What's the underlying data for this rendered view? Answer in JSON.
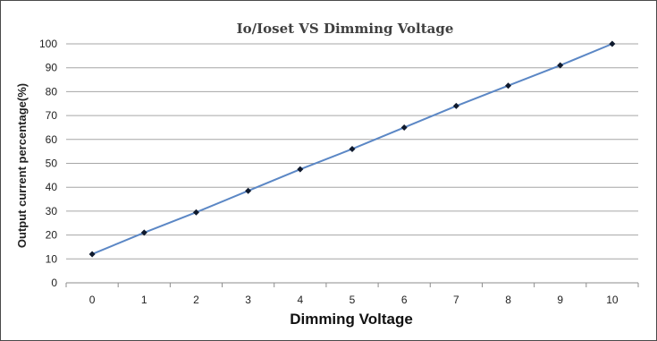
{
  "chart_data": {
    "type": "line",
    "title": "Io/Ioset VS Dimming  Voltage",
    "xlabel": "Dimming  Voltage",
    "ylabel": "Output current percentage(%)",
    "x": [
      0,
      1,
      2,
      3,
      4,
      5,
      6,
      7,
      8,
      9,
      10
    ],
    "xticks": [
      "0",
      "1",
      "2",
      "3",
      "4",
      "5",
      "6",
      "7",
      "8",
      "9",
      "10"
    ],
    "yticks": [
      "0",
      "10",
      "20",
      "30",
      "40",
      "50",
      "60",
      "70",
      "80",
      "90",
      "100"
    ],
    "ylim": [
      0,
      100
    ],
    "grid": true,
    "legend": "none",
    "series": [
      {
        "values": [
          12,
          21,
          29.5,
          38.5,
          47.5,
          56,
          65,
          74,
          82.5,
          91,
          100
        ],
        "color": "#5b87c5",
        "marker": "diamond",
        "marker_color": "#0f1a2e"
      }
    ]
  }
}
